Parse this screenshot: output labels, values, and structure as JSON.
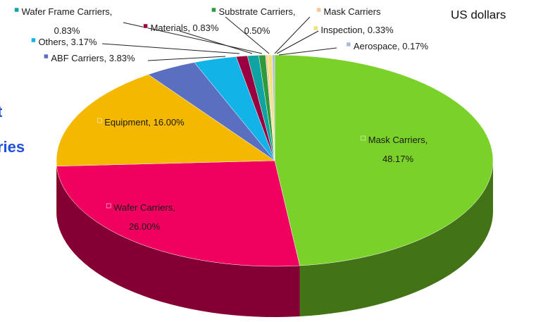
{
  "chart_data": {
    "type": "pie3d",
    "unit_note": "US dollars",
    "annotations": [
      "t",
      "ries"
    ],
    "labels": [
      "Mask Carriers,\n48.17%",
      "Wafer Carriers,\n26.00%",
      "Equipment, 16.00%",
      "ABF Carriers, 3.83%",
      "Others, 3.17%",
      "Materials, 0.83%",
      "Wafer Frame Carriers,\n0.83%",
      "Substrate Carriers,\n0.50%",
      "Mask Carriers",
      "Inspection, 0.33%",
      "Aerospace, 0.17%"
    ],
    "values": [
      48.17,
      26.0,
      16.0,
      3.83,
      3.17,
      0.83,
      0.83,
      0.5,
      0.17,
      0.33,
      0.17
    ],
    "colors": [
      "#7ad12a",
      "#f0005f",
      "#f5b800",
      "#5a6fc0",
      "#12b4e8",
      "#9a0040",
      "#10a3a3",
      "#2e9a3a",
      "#f8c89a",
      "#f1e27a",
      "#a9b9e2"
    ]
  }
}
